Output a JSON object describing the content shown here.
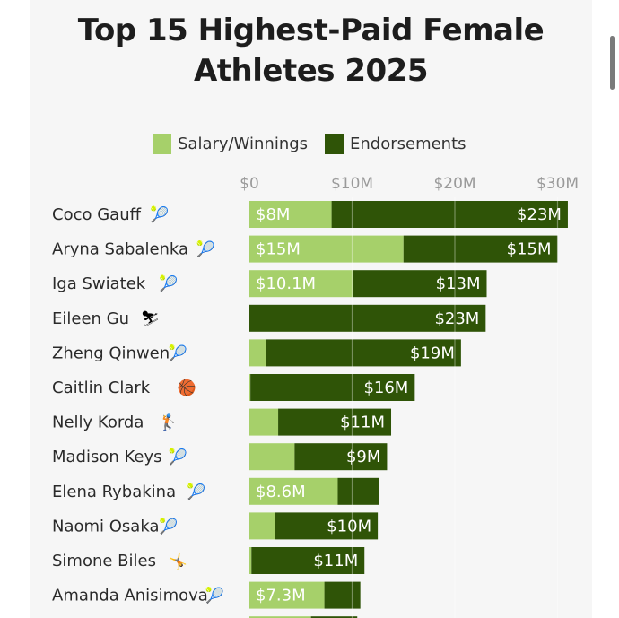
{
  "page": {
    "title_line1": "Top 15 Highest-Paid Female",
    "title_line2": "Athletes 2025"
  },
  "legend": [
    {
      "name": "Salary/Winnings",
      "color": "#a6d06a"
    },
    {
      "name": "Endorsements",
      "color": "#2f5407"
    }
  ],
  "colors": {
    "salary": "#a6d06a",
    "endorsements": "#2f5407",
    "gridline": "#e2e2e2",
    "tick_label": "#9a9a9a"
  },
  "chart_data": {
    "type": "bar",
    "orientation": "horizontal",
    "stacked": true,
    "x_ticks": [
      0,
      10,
      20,
      30
    ],
    "x_tick_labels": [
      "$0",
      "$10M",
      "$20M",
      "$30M"
    ],
    "xlim": [
      0,
      32
    ],
    "grid": true,
    "legend_position": "top",
    "categories": [
      {
        "name": "Coco Gauff",
        "icon": "tennis-icon",
        "glyph": "🎾"
      },
      {
        "name": "Aryna Sabalenka",
        "icon": "tennis-icon",
        "glyph": "🎾"
      },
      {
        "name": "Iga Swiatek",
        "icon": "tennis-icon",
        "glyph": "🎾"
      },
      {
        "name": "Eileen Gu",
        "icon": "skier-icon",
        "glyph": "⛷"
      },
      {
        "name": "Zheng Qinwen",
        "icon": "tennis-icon",
        "glyph": "🎾"
      },
      {
        "name": "Caitlin Clark",
        "icon": "basketball-icon",
        "glyph": "🏀"
      },
      {
        "name": "Nelly Korda",
        "icon": "golfer-icon",
        "glyph": "🏌"
      },
      {
        "name": "Madison Keys",
        "icon": "tennis-icon",
        "glyph": "🎾"
      },
      {
        "name": "Elena Rybakina",
        "icon": "tennis-icon",
        "glyph": "🎾"
      },
      {
        "name": "Naomi Osaka",
        "icon": "tennis-icon",
        "glyph": "🎾"
      },
      {
        "name": "Simone Biles",
        "icon": "gymnast-icon",
        "glyph": "🤸"
      },
      {
        "name": "Amanda Anisimova",
        "icon": "tennis-icon",
        "glyph": "🎾"
      }
    ],
    "series": [
      {
        "name": "Salary/Winnings",
        "values": [
          8,
          15,
          10.1,
          0,
          1.6,
          0.1,
          2.8,
          4.4,
          8.6,
          2.5,
          0.2,
          7.3
        ],
        "labels": [
          "$8M",
          "$15M",
          "$10.1M",
          "",
          "",
          "",
          "",
          "",
          "$8.6M",
          "",
          "",
          "$7.3M"
        ]
      },
      {
        "name": "Endorsements",
        "values": [
          23,
          15,
          13,
          23,
          19,
          16,
          11,
          9,
          4,
          10,
          11,
          3.5
        ],
        "labels": [
          "$23M",
          "$15M",
          "$13M",
          "$23M",
          "$19M",
          "$16M",
          "$11M",
          "$9M",
          "",
          "$10M",
          "$11M",
          ""
        ]
      }
    ]
  }
}
